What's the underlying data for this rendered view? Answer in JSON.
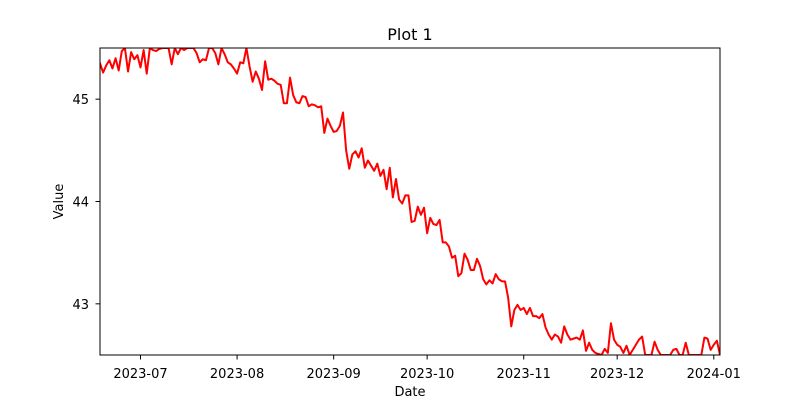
{
  "chart_data": {
    "type": "line",
    "title": "Plot 1",
    "xlabel": "Date",
    "ylabel": "Value",
    "grid": false,
    "x_axis": {
      "kind": "time",
      "start": "2023-06-18",
      "end": "2024-01-03",
      "ticks": [
        {
          "label": "2023-07",
          "date": "2023-07-01"
        },
        {
          "label": "2023-08",
          "date": "2023-08-01"
        },
        {
          "label": "2023-09",
          "date": "2023-09-01"
        },
        {
          "label": "2023-10",
          "date": "2023-10-01"
        },
        {
          "label": "2023-11",
          "date": "2023-11-01"
        },
        {
          "label": "2023-12",
          "date": "2023-12-01"
        },
        {
          "label": "2024-01",
          "date": "2024-01-01"
        }
      ]
    },
    "y_axis": {
      "ylim": [
        42.5,
        45.5
      ],
      "ticks": [
        {
          "label": "43",
          "value": 43
        },
        {
          "label": "44",
          "value": 44
        },
        {
          "label": "45",
          "value": 45
        }
      ]
    },
    "series": [
      {
        "name": "Value",
        "color": "#ff0000",
        "start_date": "2023-06-18",
        "step_days": 1,
        "values": [
          45.35,
          45.26,
          45.33,
          45.38,
          45.3,
          45.4,
          45.28,
          45.47,
          45.5,
          45.27,
          45.46,
          45.39,
          45.43,
          45.31,
          45.48,
          45.25,
          45.5,
          45.48,
          45.47,
          45.49,
          45.5,
          45.5,
          45.5,
          45.34,
          45.5,
          45.44,
          45.5,
          45.48,
          45.5,
          45.5,
          45.5,
          45.45,
          45.36,
          45.39,
          45.38,
          45.5,
          45.5,
          45.45,
          45.34,
          45.5,
          45.44,
          45.36,
          45.34,
          45.3,
          45.25,
          45.36,
          45.35,
          45.5,
          45.32,
          45.17,
          45.27,
          45.2,
          45.09,
          45.37,
          45.19,
          45.2,
          45.18,
          45.15,
          45.14,
          44.96,
          44.96,
          45.21,
          45.04,
          44.97,
          44.96,
          45.03,
          45.02,
          44.93,
          44.95,
          44.94,
          44.92,
          44.93,
          44.67,
          44.81,
          44.74,
          44.68,
          44.69,
          44.74,
          44.87,
          44.5,
          44.32,
          44.46,
          44.49,
          44.43,
          44.52,
          44.33,
          44.4,
          44.35,
          44.3,
          44.37,
          44.25,
          44.31,
          44.12,
          44.33,
          44.04,
          44.22,
          44.02,
          43.98,
          44.06,
          44.06,
          43.8,
          43.81,
          43.95,
          43.87,
          43.94,
          43.69,
          43.84,
          43.78,
          43.77,
          43.82,
          43.6,
          43.6,
          43.56,
          43.45,
          43.47,
          43.27,
          43.3,
          43.49,
          43.43,
          43.33,
          43.33,
          43.44,
          43.37,
          43.24,
          43.19,
          43.23,
          43.2,
          43.29,
          43.24,
          43.22,
          43.22,
          43.06,
          42.78,
          42.94,
          42.99,
          42.94,
          42.96,
          42.9,
          42.96,
          42.88,
          42.88,
          42.86,
          42.9,
          42.77,
          42.7,
          42.65,
          42.7,
          42.68,
          42.62,
          42.78,
          42.7,
          42.65,
          42.66,
          42.67,
          42.65,
          42.74,
          42.54,
          42.62,
          42.55,
          42.52,
          42.51,
          42.5,
          42.56,
          42.52,
          42.81,
          42.65,
          42.6,
          42.58,
          42.52,
          42.59,
          42.5,
          42.55,
          42.6,
          42.65,
          42.68,
          42.5,
          42.5,
          42.5,
          42.63,
          42.55,
          42.5,
          42.5,
          42.5,
          42.5,
          42.55,
          42.56,
          42.5,
          42.5,
          42.62,
          42.5,
          42.5,
          42.5,
          42.5,
          42.5,
          42.67,
          42.66,
          42.55,
          42.6,
          42.64,
          42.5,
          42.6,
          42.58,
          42.66,
          42.63
        ]
      }
    ]
  }
}
